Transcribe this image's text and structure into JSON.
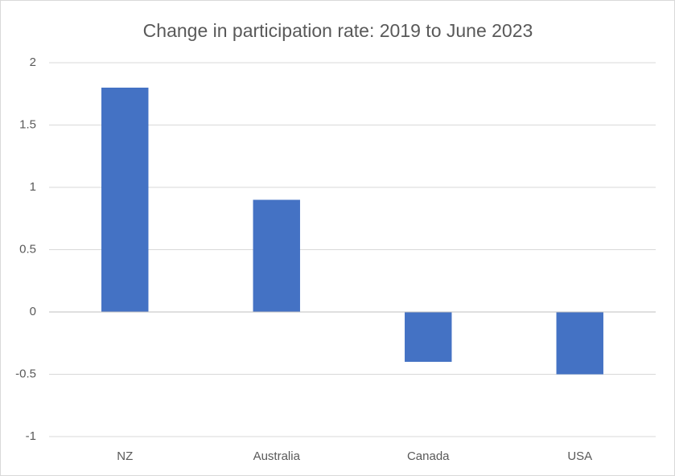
{
  "chart_data": {
    "type": "bar",
    "title": "Change in participation rate: 2019 to June 2023",
    "categories": [
      "NZ",
      "Australia",
      "Canada",
      "USA"
    ],
    "values": [
      1.8,
      0.9,
      -0.4,
      -0.5
    ],
    "color": "#4472c4",
    "ylim": [
      -1,
      2
    ],
    "yticks": [
      -1,
      -0.5,
      0,
      0.5,
      1,
      1.5,
      2
    ],
    "grid": true
  }
}
